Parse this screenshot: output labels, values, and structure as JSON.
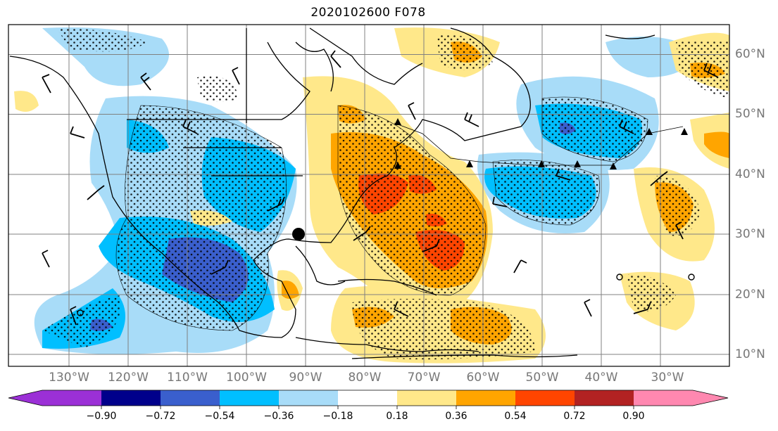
{
  "title": "2020102600 F078",
  "lon_labels": [
    "130°W",
    "120°W",
    "110°W",
    "100°W",
    "90°W",
    "80°W",
    "70°W",
    "60°W",
    "50°W",
    "40°W",
    "30°W"
  ],
  "lat_labels": [
    "60°N",
    "50°N",
    "40°N",
    "30°N",
    "20°N",
    "10°N"
  ],
  "colorbar": {
    "tick_labels": [
      "−0.90",
      "−0.72",
      "−0.54",
      "−0.36",
      "−0.18",
      "0.18",
      "0.36",
      "0.54",
      "0.72",
      "0.90"
    ],
    "colors": [
      "#9b30d6",
      "#00008b",
      "#3a5fcd",
      "#00bfff",
      "#a8dcf8",
      "#ffffff",
      "#ffe88a",
      "#ffa500",
      "#ff4500",
      "#b22222",
      "#ff88b0"
    ]
  },
  "colors": {
    "border": "#000000",
    "grid": "#808080",
    "axis_label": "#777777"
  },
  "icons": [
    "cold-front-triangle-icon",
    "wind-barb-icon",
    "marker-dot-icon"
  ]
}
